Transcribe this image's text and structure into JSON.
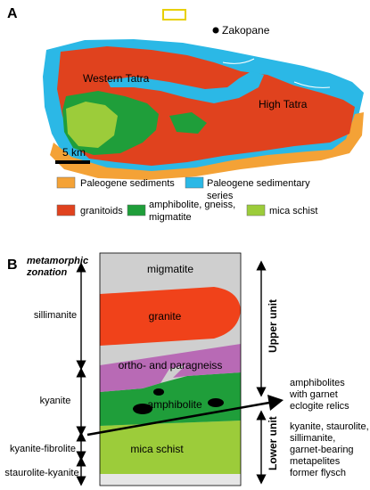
{
  "panel_a": {
    "letter": "A",
    "labels": {
      "zakopane": "Zakopane",
      "western_tatra": "Western Tatra",
      "high_tatra": "High Tatra"
    },
    "scale_label": "5 km",
    "legend": [
      {
        "label": "Paleogene sediments",
        "color": "#f4a236"
      },
      {
        "label": "Paleogene sedimentary",
        "label2": "series",
        "color": "#2bb8e6"
      },
      {
        "label": "granitoids",
        "color": "#e0421e"
      },
      {
        "label": "amphibolite, gneiss,",
        "label2": "migmatite",
        "color": "#1f9e3a"
      },
      {
        "label": "mica schist",
        "color": "#9ccc3a"
      }
    ]
  },
  "panel_b": {
    "letter": "B",
    "heading_line1": "metamorphic",
    "heading_line2": "zonation",
    "zones": [
      "sillimanite",
      "kyanite",
      "kyanite-fibrolite",
      "staurolite-kyanite"
    ],
    "layers": [
      "migmatite",
      "granite",
      "ortho- and paragneiss",
      "amphibolite",
      "mica schist"
    ],
    "units": [
      "Upper unit",
      "Lower unit"
    ],
    "upper_notes": [
      "amphibolites",
      "with garnet",
      "eclogite relics"
    ],
    "lower_notes": [
      "kyanite, staurolite,",
      "sillimanite,",
      "garnet-bearing",
      "metapelites",
      "former flysch"
    ]
  }
}
